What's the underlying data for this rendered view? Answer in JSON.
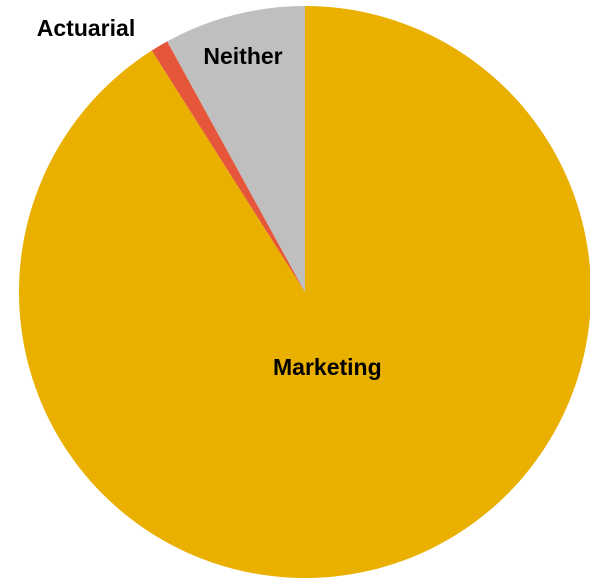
{
  "chart_data": {
    "type": "pie",
    "categories": [
      "Marketing",
      "Actuarial",
      "Neither"
    ],
    "values": [
      91,
      1,
      8
    ],
    "colors": [
      "#EAB000",
      "#E5563A",
      "#BFBFBF"
    ]
  }
}
